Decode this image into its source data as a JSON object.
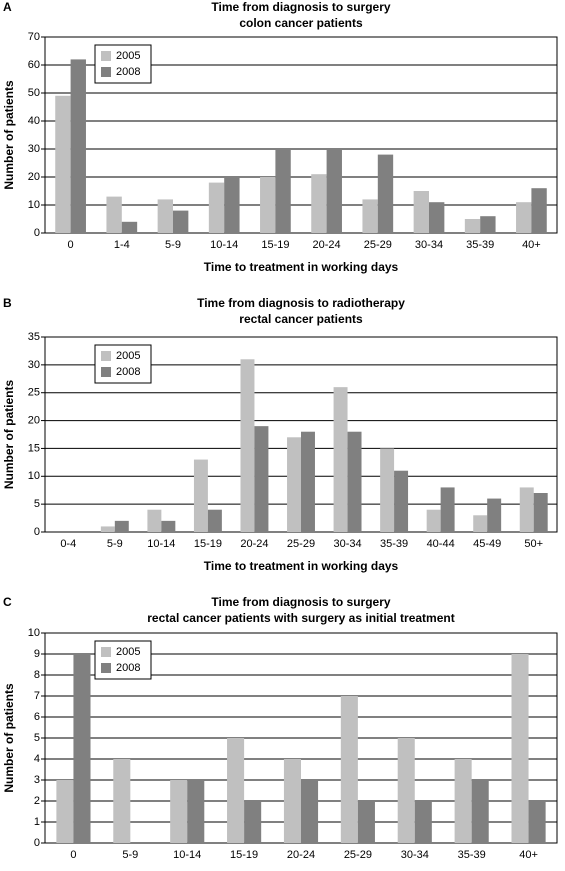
{
  "chart_data": [
    {
      "type": "bar",
      "label": "A",
      "title": "Time from diagnosis to surgery",
      "subtitle": "colon cancer patients",
      "x_label": "Time to treatment in working days",
      "y_label": "Number of patients",
      "categories": [
        "0",
        "1-4",
        "5-9",
        "10-14",
        "15-19",
        "20-24",
        "25-29",
        "30-34",
        "35-39",
        "40+"
      ],
      "series": [
        {
          "name": "2005",
          "color": "#c0c0c0",
          "values": [
            49,
            13,
            12,
            18,
            20,
            21,
            12,
            15,
            5,
            11
          ]
        },
        {
          "name": "2008",
          "color": "#808080",
          "values": [
            62,
            4,
            8,
            20,
            30,
            30,
            28,
            11,
            6,
            16
          ]
        }
      ],
      "ylim": [
        0,
        70
      ],
      "yticks": [
        0,
        10,
        20,
        30,
        40,
        50,
        60,
        70
      ],
      "grid": true,
      "legend": "top-left"
    },
    {
      "type": "bar",
      "label": "B",
      "title": "Time from diagnosis to radiotherapy",
      "subtitle": "rectal cancer patients",
      "x_label": "Time to treatment in working days",
      "y_label": "Number of patients",
      "categories": [
        "0-4",
        "5-9",
        "10-14",
        "15-19",
        "20-24",
        "25-29",
        "30-34",
        "35-39",
        "40-44",
        "45-49",
        "50+"
      ],
      "series": [
        {
          "name": "2005",
          "color": "#c0c0c0",
          "values": [
            0,
            1,
            4,
            13,
            31,
            17,
            26,
            15,
            4,
            3,
            8
          ]
        },
        {
          "name": "2008",
          "color": "#808080",
          "values": [
            0,
            2,
            2,
            4,
            19,
            18,
            18,
            11,
            8,
            6,
            7
          ]
        }
      ],
      "ylim": [
        0,
        35
      ],
      "yticks": [
        0,
        5,
        10,
        15,
        20,
        25,
        30,
        35
      ],
      "grid": true,
      "legend": "top-left"
    },
    {
      "type": "bar",
      "label": "C",
      "title": "Time from diagnosis to surgery",
      "subtitle": "rectal cancer patients with surgery as initial treatment",
      "x_label": "Time to treatment in working days",
      "y_label": "Number of patients",
      "categories": [
        "0",
        "5-9",
        "10-14",
        "15-19",
        "20-24",
        "25-29",
        "30-34",
        "35-39",
        "40+"
      ],
      "series": [
        {
          "name": "2005",
          "color": "#c0c0c0",
          "values": [
            3,
            4,
            3,
            5,
            4,
            7,
            5,
            4,
            9
          ]
        },
        {
          "name": "2008",
          "color": "#808080",
          "values": [
            9,
            0,
            3,
            2,
            3,
            2,
            2,
            3,
            2
          ]
        }
      ],
      "ylim": [
        0,
        10
      ],
      "yticks": [
        0,
        1,
        2,
        3,
        4,
        5,
        6,
        7,
        8,
        9,
        10
      ],
      "grid": true,
      "legend": "top-left"
    }
  ]
}
